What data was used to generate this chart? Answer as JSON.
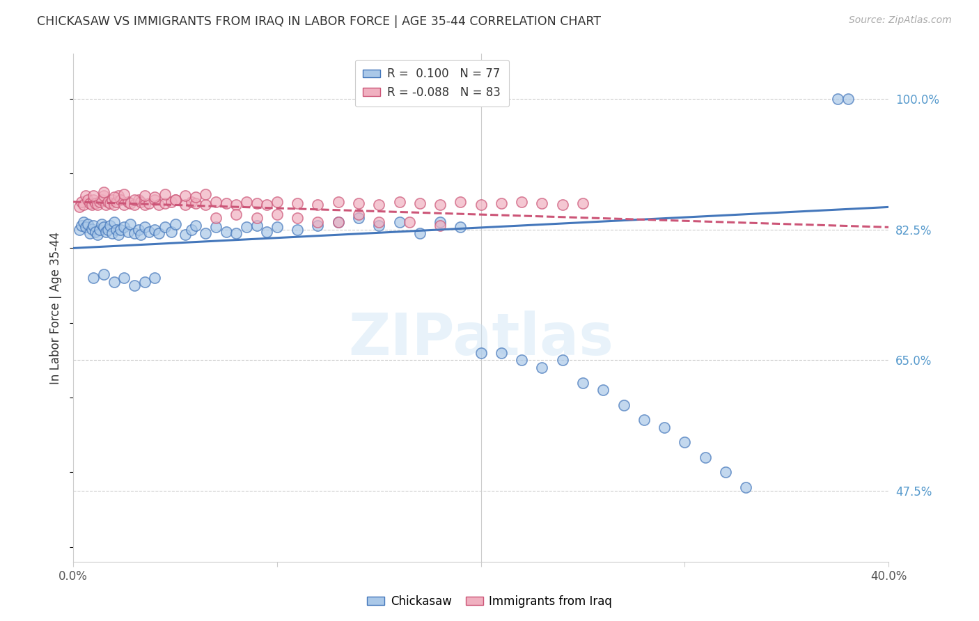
{
  "title": "CHICKASAW VS IMMIGRANTS FROM IRAQ IN LABOR FORCE | AGE 35-44 CORRELATION CHART",
  "source": "Source: ZipAtlas.com",
  "ylabel": "In Labor Force | Age 35-44",
  "ytick_labels": [
    "100.0%",
    "82.5%",
    "65.0%",
    "47.5%"
  ],
  "ytick_values": [
    1.0,
    0.825,
    0.65,
    0.475
  ],
  "watermark": "ZIPatlas",
  "chickasaw_color": "#aac8e8",
  "iraq_color": "#f0b0c0",
  "chickasaw_line_color": "#4477bb",
  "iraq_line_color": "#cc5577",
  "background_color": "#ffffff",
  "grid_color": "#cccccc",
  "x_min": 0.0,
  "x_max": 0.4,
  "y_min": 0.38,
  "y_max": 1.06,
  "blue_line_x": [
    0.0,
    0.4
  ],
  "blue_line_y": [
    0.8,
    0.855
  ],
  "pink_line_x": [
    0.0,
    0.4
  ],
  "pink_line_y": [
    0.862,
    0.828
  ],
  "chickasaw_x": [
    0.003,
    0.004,
    0.005,
    0.006,
    0.007,
    0.008,
    0.009,
    0.01,
    0.011,
    0.012,
    0.013,
    0.014,
    0.015,
    0.016,
    0.017,
    0.018,
    0.019,
    0.02,
    0.021,
    0.022,
    0.023,
    0.025,
    0.027,
    0.028,
    0.03,
    0.032,
    0.033,
    0.035,
    0.037,
    0.04,
    0.042,
    0.045,
    0.048,
    0.05,
    0.055,
    0.058,
    0.06,
    0.065,
    0.07,
    0.075,
    0.08,
    0.085,
    0.09,
    0.095,
    0.1,
    0.11,
    0.12,
    0.13,
    0.14,
    0.15,
    0.16,
    0.17,
    0.18,
    0.19,
    0.2,
    0.21,
    0.22,
    0.23,
    0.24,
    0.25,
    0.26,
    0.27,
    0.28,
    0.29,
    0.3,
    0.31,
    0.32,
    0.33,
    0.01,
    0.015,
    0.02,
    0.025,
    0.03,
    0.035,
    0.04,
    0.375,
    0.38
  ],
  "chickasaw_y": [
    0.825,
    0.83,
    0.835,
    0.828,
    0.832,
    0.82,
    0.826,
    0.83,
    0.822,
    0.818,
    0.825,
    0.832,
    0.828,
    0.822,
    0.825,
    0.83,
    0.82,
    0.835,
    0.825,
    0.818,
    0.825,
    0.828,
    0.822,
    0.832,
    0.82,
    0.825,
    0.818,
    0.828,
    0.822,
    0.825,
    0.82,
    0.828,
    0.822,
    0.832,
    0.818,
    0.825,
    0.83,
    0.82,
    0.828,
    0.822,
    0.82,
    0.828,
    0.83,
    0.822,
    0.828,
    0.825,
    0.83,
    0.835,
    0.84,
    0.83,
    0.835,
    0.82,
    0.835,
    0.828,
    0.66,
    0.66,
    0.65,
    0.64,
    0.65,
    0.62,
    0.61,
    0.59,
    0.57,
    0.56,
    0.54,
    0.52,
    0.5,
    0.48,
    0.76,
    0.765,
    0.755,
    0.76,
    0.75,
    0.755,
    0.76,
    1.0,
    1.0
  ],
  "iraq_x": [
    0.003,
    0.004,
    0.005,
    0.006,
    0.007,
    0.008,
    0.009,
    0.01,
    0.011,
    0.012,
    0.013,
    0.014,
    0.015,
    0.016,
    0.017,
    0.018,
    0.019,
    0.02,
    0.021,
    0.022,
    0.023,
    0.025,
    0.027,
    0.028,
    0.03,
    0.032,
    0.033,
    0.035,
    0.037,
    0.04,
    0.042,
    0.045,
    0.048,
    0.05,
    0.055,
    0.058,
    0.06,
    0.065,
    0.07,
    0.075,
    0.08,
    0.085,
    0.09,
    0.095,
    0.1,
    0.11,
    0.12,
    0.13,
    0.14,
    0.15,
    0.16,
    0.17,
    0.18,
    0.19,
    0.2,
    0.21,
    0.22,
    0.23,
    0.24,
    0.25,
    0.01,
    0.015,
    0.02,
    0.025,
    0.03,
    0.035,
    0.04,
    0.045,
    0.05,
    0.055,
    0.06,
    0.065,
    0.07,
    0.08,
    0.09,
    0.1,
    0.11,
    0.12,
    0.13,
    0.14,
    0.15,
    0.165,
    0.18
  ],
  "iraq_y": [
    0.855,
    0.862,
    0.858,
    0.87,
    0.865,
    0.86,
    0.858,
    0.865,
    0.86,
    0.858,
    0.862,
    0.865,
    0.87,
    0.858,
    0.862,
    0.86,
    0.865,
    0.858,
    0.862,
    0.87,
    0.865,
    0.858,
    0.862,
    0.86,
    0.858,
    0.865,
    0.862,
    0.858,
    0.86,
    0.865,
    0.858,
    0.86,
    0.862,
    0.865,
    0.858,
    0.862,
    0.86,
    0.858,
    0.862,
    0.86,
    0.858,
    0.862,
    0.86,
    0.858,
    0.862,
    0.86,
    0.858,
    0.862,
    0.86,
    0.858,
    0.862,
    0.86,
    0.858,
    0.862,
    0.858,
    0.86,
    0.862,
    0.86,
    0.858,
    0.86,
    0.87,
    0.875,
    0.868,
    0.872,
    0.865,
    0.87,
    0.868,
    0.872,
    0.865,
    0.87,
    0.868,
    0.872,
    0.84,
    0.845,
    0.84,
    0.845,
    0.84,
    0.835,
    0.835,
    0.845,
    0.835,
    0.835,
    0.83
  ]
}
